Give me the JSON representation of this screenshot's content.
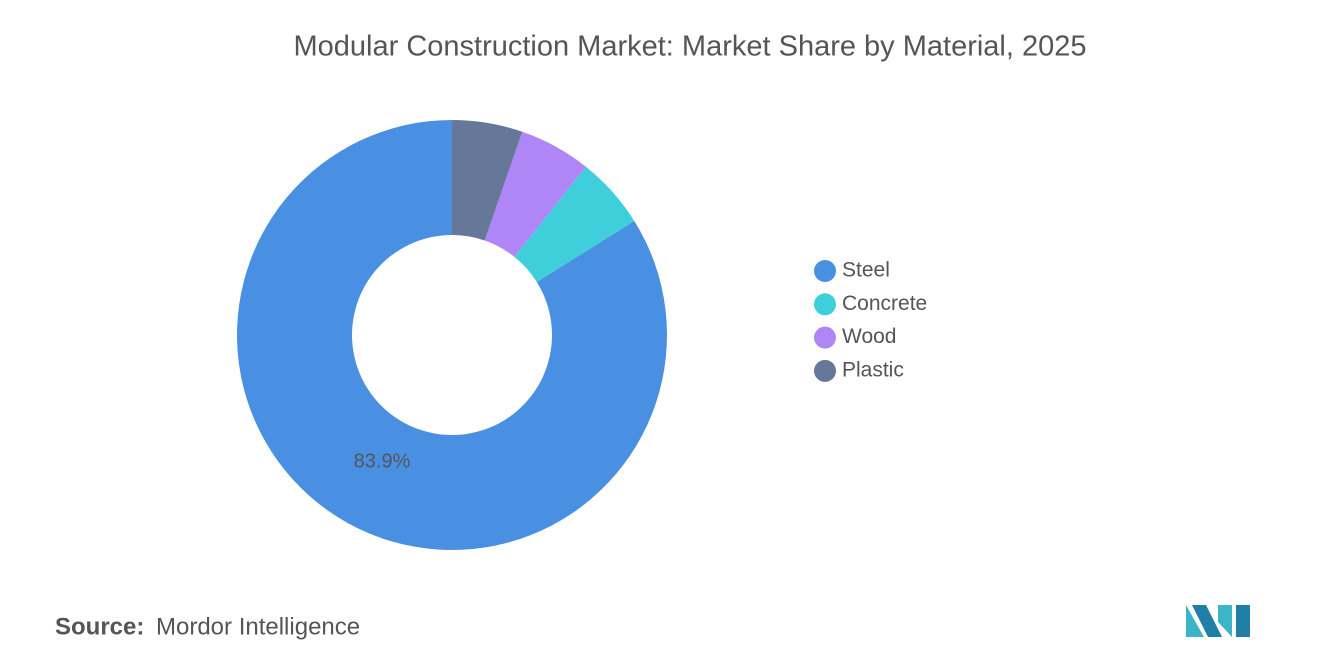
{
  "chart_data": {
    "type": "donut",
    "title": "Modular Construction Market: Market Share by Material, 2025",
    "categories": [
      "Steel",
      "Concrete",
      "Wood",
      "Plastic"
    ],
    "values": [
      83.9,
      5.4,
      5.4,
      5.3
    ],
    "value_labels": [
      "83.9%",
      null,
      null,
      null
    ],
    "colors": [
      "#4a90e2",
      "#3fcfdb",
      "#b085f5",
      "#66789a"
    ],
    "legend": "right",
    "source_label": "Source:",
    "source": "Mordor Intelligence"
  }
}
